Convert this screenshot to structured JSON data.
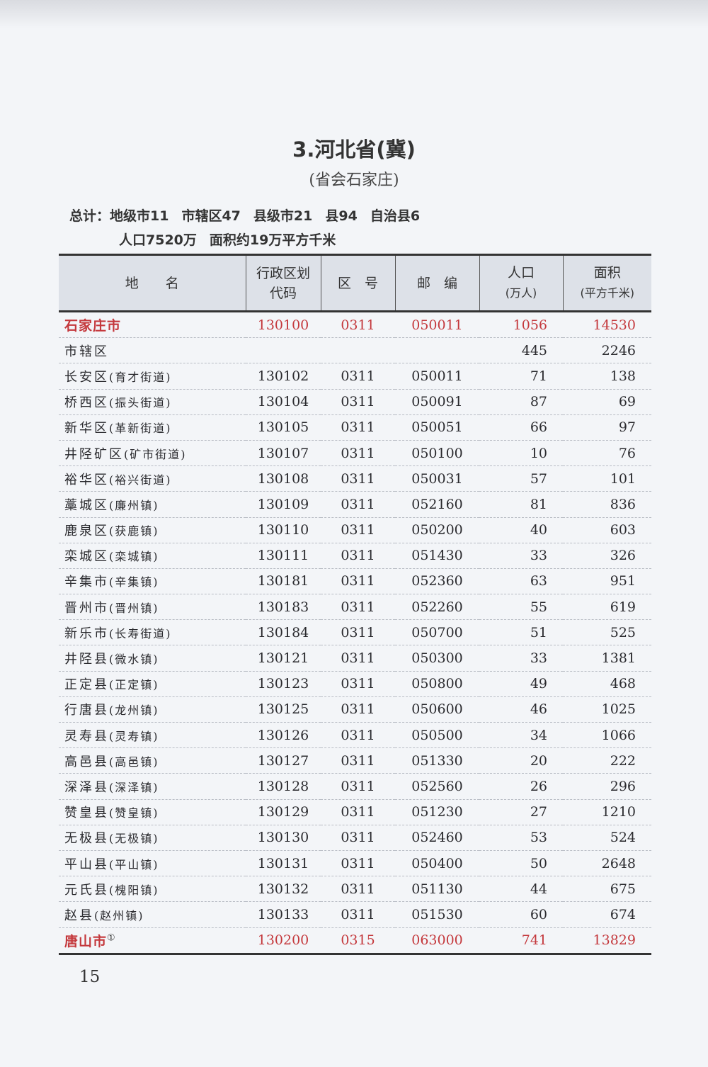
{
  "title": "3.河北省(冀)",
  "subtitle": "(省会石家庄)",
  "summary": {
    "line1": [
      "总计：地级市11",
      "市辖区47",
      "县级市21",
      "县94",
      "自治县6"
    ],
    "line2": [
      "人口7520万",
      "面积约19万平方千米"
    ]
  },
  "table": {
    "headers": {
      "name": "地　　名",
      "code_1": "行政区划",
      "code_2": "代码",
      "area_code": "区　号",
      "postal": "邮　编",
      "pop_1": "人口",
      "pop_2": "(万人)",
      "area_1": "面积",
      "area_2": "(平方千米)"
    },
    "rows": [
      {
        "name": "石家庄市",
        "town": "",
        "code": "130100",
        "area_code": "0311",
        "postal": "050011",
        "pop": "1056",
        "area": "14530",
        "city": true
      },
      {
        "name": "市辖区",
        "town": "",
        "code": "",
        "area_code": "",
        "postal": "",
        "pop": "445",
        "area": "2246"
      },
      {
        "name": "长安区",
        "town": "(育才街道)",
        "code": "130102",
        "area_code": "0311",
        "postal": "050011",
        "pop": "71",
        "area": "138"
      },
      {
        "name": "桥西区",
        "town": "(振头街道)",
        "code": "130104",
        "area_code": "0311",
        "postal": "050091",
        "pop": "87",
        "area": "69"
      },
      {
        "name": "新华区",
        "town": "(革新街道)",
        "code": "130105",
        "area_code": "0311",
        "postal": "050051",
        "pop": "66",
        "area": "97"
      },
      {
        "name": "井陉矿区",
        "town": "(矿市街道)",
        "code": "130107",
        "area_code": "0311",
        "postal": "050100",
        "pop": "10",
        "area": "76"
      },
      {
        "name": "裕华区",
        "town": "(裕兴街道)",
        "code": "130108",
        "area_code": "0311",
        "postal": "050031",
        "pop": "57",
        "area": "101"
      },
      {
        "name": "藁城区",
        "town": "(廉州镇)",
        "code": "130109",
        "area_code": "0311",
        "postal": "052160",
        "pop": "81",
        "area": "836"
      },
      {
        "name": "鹿泉区",
        "town": "(获鹿镇)",
        "code": "130110",
        "area_code": "0311",
        "postal": "050200",
        "pop": "40",
        "area": "603"
      },
      {
        "name": "栾城区",
        "town": "(栾城镇)",
        "code": "130111",
        "area_code": "0311",
        "postal": "051430",
        "pop": "33",
        "area": "326"
      },
      {
        "name": "辛集市",
        "town": "(辛集镇)",
        "code": "130181",
        "area_code": "0311",
        "postal": "052360",
        "pop": "63",
        "area": "951"
      },
      {
        "name": "晋州市",
        "town": "(晋州镇)",
        "code": "130183",
        "area_code": "0311",
        "postal": "052260",
        "pop": "55",
        "area": "619"
      },
      {
        "name": "新乐市",
        "town": "(长寿街道)",
        "code": "130184",
        "area_code": "0311",
        "postal": "050700",
        "pop": "51",
        "area": "525"
      },
      {
        "name": "井陉县",
        "town": "(微水镇)",
        "code": "130121",
        "area_code": "0311",
        "postal": "050300",
        "pop": "33",
        "area": "1381"
      },
      {
        "name": "正定县",
        "town": "(正定镇)",
        "code": "130123",
        "area_code": "0311",
        "postal": "050800",
        "pop": "49",
        "area": "468"
      },
      {
        "name": "行唐县",
        "town": "(龙州镇)",
        "code": "130125",
        "area_code": "0311",
        "postal": "050600",
        "pop": "46",
        "area": "1025"
      },
      {
        "name": "灵寿县",
        "town": "(灵寿镇)",
        "code": "130126",
        "area_code": "0311",
        "postal": "050500",
        "pop": "34",
        "area": "1066"
      },
      {
        "name": "高邑县",
        "town": "(高邑镇)",
        "code": "130127",
        "area_code": "0311",
        "postal": "051330",
        "pop": "20",
        "area": "222"
      },
      {
        "name": "深泽县",
        "town": "(深泽镇)",
        "code": "130128",
        "area_code": "0311",
        "postal": "052560",
        "pop": "26",
        "area": "296"
      },
      {
        "name": "赞皇县",
        "town": "(赞皇镇)",
        "code": "130129",
        "area_code": "0311",
        "postal": "051230",
        "pop": "27",
        "area": "1210"
      },
      {
        "name": "无极县",
        "town": "(无极镇)",
        "code": "130130",
        "area_code": "0311",
        "postal": "052460",
        "pop": "53",
        "area": "524"
      },
      {
        "name": "平山县",
        "town": "(平山镇)",
        "code": "130131",
        "area_code": "0311",
        "postal": "050400",
        "pop": "50",
        "area": "2648"
      },
      {
        "name": "元氏县",
        "town": "(槐阳镇)",
        "code": "130132",
        "area_code": "0311",
        "postal": "051130",
        "pop": "44",
        "area": "675"
      },
      {
        "name": "赵县",
        "town": "(赵州镇)",
        "code": "130133",
        "area_code": "0311",
        "postal": "051530",
        "pop": "60",
        "area": "674"
      },
      {
        "name": "唐山市",
        "town": "",
        "note": "①",
        "code": "130200",
        "area_code": "0315",
        "postal": "063000",
        "pop": "741",
        "area": "13829",
        "city": true
      }
    ]
  },
  "page_number": "15",
  "colors": {
    "city_red": "#c4383c",
    "header_bg": "#dde1e8",
    "paper": "#f3f5f8"
  }
}
